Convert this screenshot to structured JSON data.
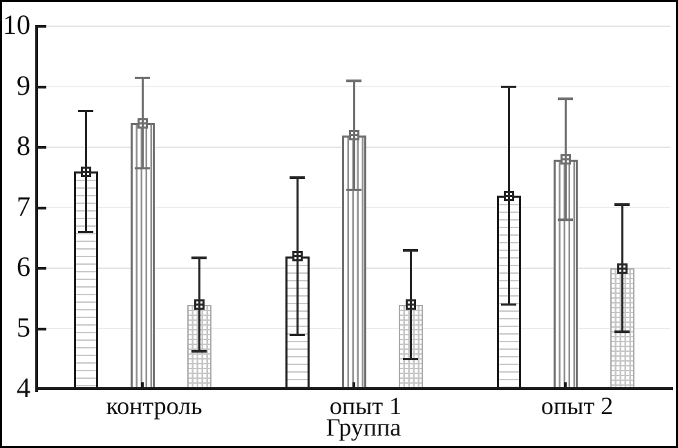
{
  "figure": {
    "background": "#ffffff",
    "frame_color": "#000000"
  },
  "chart_data": {
    "type": "bar",
    "title": "",
    "xlabel": "Группа",
    "ylabel": "",
    "ylim": [
      4,
      10
    ],
    "ytick_labels": [
      "4",
      "5",
      "6",
      "7",
      "8",
      "9",
      "10"
    ],
    "grid": "horizontal",
    "grid_color": "#e4e4e4",
    "axis_color": "#1a1a1a",
    "legend": "none",
    "marker": "open-square-with-cross",
    "categories": [
      "контроль",
      "опыт 1",
      "опыт 2"
    ],
    "series": [
      {
        "hatch": "horizontal-lines",
        "outline_color": "#1f1f1f",
        "hatch_color": "#c9c9c9",
        "error_color": "#262626",
        "values": [
          7.6,
          6.2,
          7.2
        ],
        "errors": [
          1.0,
          1.3,
          1.8
        ]
      },
      {
        "hatch": "vertical-lines",
        "outline_color": "#6f6f6f",
        "hatch_color": "#909090",
        "error_color": "#6f6f6f",
        "values": [
          8.4,
          8.2,
          7.8
        ],
        "errors": [
          0.75,
          0.9,
          1.0
        ]
      },
      {
        "hatch": "grid",
        "outline_color": "#ababab",
        "hatch_color": "#c6c6c6",
        "error_color": "#262626",
        "values": [
          5.4,
          5.4,
          6.0
        ],
        "errors": [
          0.77,
          0.9,
          1.05
        ]
      }
    ]
  }
}
